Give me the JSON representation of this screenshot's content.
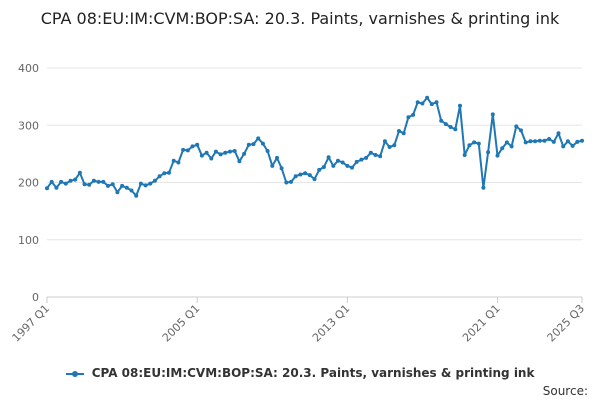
{
  "chart_data": {
    "type": "line",
    "title": "CPA 08:EU:IM:CVM:BOP:SA: 20.3. Paints, varnishes & printing ink",
    "xlabel": "",
    "ylabel": "",
    "ylim": [
      0,
      400
    ],
    "yticks": [
      0,
      100,
      200,
      300,
      400
    ],
    "grid": true,
    "legend_position": "bottom",
    "xtick_labels": [
      "1997 Q1",
      "2005 Q1",
      "2013 Q1",
      "2021 Q1",
      "2025 Q3"
    ],
    "series": [
      {
        "name": "CPA 08:EU:IM:CVM:BOP:SA: 20.3. Paints, varnishes & printing ink",
        "color": "#1f77b4",
        "points": [
          [
            "1997 Q1",
            190
          ],
          [
            "1997 Q2",
            201
          ],
          [
            "1997 Q3",
            191
          ],
          [
            "1997 Q4",
            201
          ],
          [
            "1998 Q1",
            198
          ],
          [
            "1998 Q2",
            203
          ],
          [
            "1998 Q3",
            205
          ],
          [
            "1998 Q4",
            217
          ],
          [
            "1999 Q1",
            197
          ],
          [
            "1999 Q2",
            196
          ],
          [
            "1999 Q3",
            203
          ],
          [
            "1999 Q4",
            201
          ],
          [
            "2000 Q1",
            201
          ],
          [
            "2000 Q2",
            194
          ],
          [
            "2000 Q3",
            197
          ],
          [
            "2000 Q4",
            183
          ],
          [
            "2001 Q1",
            194
          ],
          [
            "2001 Q2",
            191
          ],
          [
            "2001 Q3",
            186
          ],
          [
            "2001 Q4",
            177
          ],
          [
            "2002 Q1",
            198
          ],
          [
            "2002 Q2",
            195
          ],
          [
            "2002 Q3",
            198
          ],
          [
            "2002 Q4",
            203
          ],
          [
            "2003 Q1",
            211
          ],
          [
            "2003 Q2",
            216
          ],
          [
            "2003 Q3",
            217
          ],
          [
            "2003 Q4",
            238
          ],
          [
            "2004 Q1",
            235
          ],
          [
            "2004 Q2",
            257
          ],
          [
            "2004 Q3",
            256
          ],
          [
            "2004 Q4",
            263
          ],
          [
            "2005 Q1",
            266
          ],
          [
            "2005 Q2",
            247
          ],
          [
            "2005 Q3",
            252
          ],
          [
            "2005 Q4",
            242
          ],
          [
            "2006 Q1",
            254
          ],
          [
            "2006 Q2",
            249
          ],
          [
            "2006 Q3",
            252
          ],
          [
            "2006 Q4",
            254
          ],
          [
            "2007 Q1",
            255
          ],
          [
            "2007 Q2",
            237
          ],
          [
            "2007 Q3",
            250
          ],
          [
            "2007 Q4",
            266
          ],
          [
            "2008 Q1",
            267
          ],
          [
            "2008 Q2",
            277
          ],
          [
            "2008 Q3",
            268
          ],
          [
            "2008 Q4",
            255
          ],
          [
            "2009 Q1",
            229
          ],
          [
            "2009 Q2",
            243
          ],
          [
            "2009 Q3",
            225
          ],
          [
            "2009 Q4",
            200
          ],
          [
            "2010 Q1",
            201
          ],
          [
            "2010 Q2",
            211
          ],
          [
            "2010 Q3",
            214
          ],
          [
            "2010 Q4",
            216
          ],
          [
            "2011 Q1",
            213
          ],
          [
            "2011 Q2",
            206
          ],
          [
            "2011 Q3",
            222
          ],
          [
            "2011 Q4",
            227
          ],
          [
            "2012 Q1",
            244
          ],
          [
            "2012 Q2",
            229
          ],
          [
            "2012 Q3",
            238
          ],
          [
            "2012 Q4",
            235
          ],
          [
            "2013 Q1",
            229
          ],
          [
            "2013 Q2",
            226
          ],
          [
            "2013 Q3",
            236
          ],
          [
            "2013 Q4",
            240
          ],
          [
            "2014 Q1",
            243
          ],
          [
            "2014 Q2",
            252
          ],
          [
            "2014 Q3",
            248
          ],
          [
            "2014 Q4",
            246
          ],
          [
            "2015 Q1",
            272
          ],
          [
            "2015 Q2",
            262
          ],
          [
            "2015 Q3",
            265
          ],
          [
            "2015 Q4",
            290
          ],
          [
            "2016 Q1",
            286
          ],
          [
            "2016 Q2",
            314
          ],
          [
            "2016 Q3",
            318
          ],
          [
            "2016 Q4",
            340
          ],
          [
            "2017 Q1",
            338
          ],
          [
            "2017 Q2",
            348
          ],
          [
            "2017 Q3",
            337
          ],
          [
            "2017 Q4",
            340
          ],
          [
            "2018 Q1",
            308
          ],
          [
            "2018 Q2",
            302
          ],
          [
            "2018 Q3",
            297
          ],
          [
            "2018 Q4",
            293
          ],
          [
            "2019 Q1",
            334
          ],
          [
            "2019 Q2",
            248
          ],
          [
            "2019 Q3",
            265
          ],
          [
            "2019 Q4",
            270
          ],
          [
            "2020 Q1",
            268
          ],
          [
            "2020 Q2",
            191
          ],
          [
            "2020 Q3",
            253
          ],
          [
            "2020 Q4",
            319
          ],
          [
            "2021 Q1",
            247
          ],
          [
            "2021 Q2",
            260
          ],
          [
            "2021 Q3",
            270
          ],
          [
            "2021 Q4",
            263
          ],
          [
            "2022 Q1",
            298
          ],
          [
            "2022 Q2",
            291
          ],
          [
            "2022 Q3",
            270
          ],
          [
            "2022 Q4",
            272
          ],
          [
            "2023 Q1",
            272
          ],
          [
            "2023 Q2",
            273
          ],
          [
            "2023 Q3",
            273
          ],
          [
            "2023 Q4",
            276
          ],
          [
            "2024 Q1",
            271
          ],
          [
            "2024 Q2",
            286
          ],
          [
            "2024 Q3",
            263
          ],
          [
            "2024 Q4",
            272
          ],
          [
            "2025 Q1",
            264
          ],
          [
            "2025 Q2",
            271
          ],
          [
            "2025 Q3",
            273
          ]
        ]
      }
    ]
  },
  "source_label": "Source:"
}
